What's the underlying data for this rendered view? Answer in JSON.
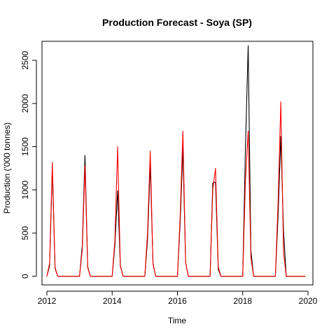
{
  "chart_data": {
    "type": "line",
    "title": "Production Forecast - Soya (SP)",
    "xlabel": "Time",
    "ylabel": "Production ('000 tonnes)",
    "xlim": [
      2011.85,
      2020.15
    ],
    "ylim": [
      -100,
      2720
    ],
    "x_ticks": [
      2012,
      2014,
      2016,
      2018,
      2020
    ],
    "x_tick_labels": [
      "2012",
      "2014",
      "2016",
      "2018",
      "2020"
    ],
    "y_ticks": [
      0,
      500,
      1000,
      1500,
      2000,
      2500
    ],
    "y_tick_labels": [
      "0",
      "500",
      "1000",
      "1500",
      "2000",
      "2500"
    ],
    "grid": false,
    "colors": {
      "actual": "#000000",
      "forecast": "#ff0000"
    },
    "series": [
      {
        "role": "actual",
        "color": "#000000",
        "points": [
          [
            2012.0,
            0
          ],
          [
            2012.083,
            120
          ],
          [
            2012.167,
            1250
          ],
          [
            2012.25,
            90
          ],
          [
            2012.333,
            0
          ],
          [
            2013.0,
            0
          ],
          [
            2013.083,
            350
          ],
          [
            2013.167,
            1400
          ],
          [
            2013.25,
            110
          ],
          [
            2013.333,
            0
          ],
          [
            2014.0,
            0
          ],
          [
            2014.083,
            360
          ],
          [
            2014.167,
            990
          ],
          [
            2014.25,
            130
          ],
          [
            2014.333,
            0
          ],
          [
            2015.0,
            0
          ],
          [
            2015.083,
            420
          ],
          [
            2015.167,
            1300
          ],
          [
            2015.25,
            150
          ],
          [
            2015.333,
            0
          ],
          [
            2016.0,
            0
          ],
          [
            2016.083,
            620
          ],
          [
            2016.167,
            1480
          ],
          [
            2016.25,
            160
          ],
          [
            2016.333,
            0
          ],
          [
            2017.0,
            0
          ],
          [
            2017.083,
            1080
          ],
          [
            2017.167,
            1090
          ],
          [
            2017.25,
            80
          ],
          [
            2017.333,
            0
          ],
          [
            2018.0,
            0
          ],
          [
            2018.083,
            1480
          ],
          [
            2018.167,
            2670
          ],
          [
            2018.25,
            300
          ],
          [
            2018.333,
            0
          ],
          [
            2019.0,
            0
          ],
          [
            2019.083,
            700
          ],
          [
            2019.167,
            1620
          ],
          [
            2019.25,
            520
          ],
          [
            2019.333,
            0
          ],
          [
            2019.917,
            0
          ]
        ]
      },
      {
        "role": "forecast",
        "color": "#ff0000",
        "points": [
          [
            2012.0,
            0
          ],
          [
            2012.083,
            150
          ],
          [
            2012.167,
            1320
          ],
          [
            2012.25,
            100
          ],
          [
            2012.333,
            0
          ],
          [
            2013.0,
            0
          ],
          [
            2013.083,
            300
          ],
          [
            2013.167,
            1280
          ],
          [
            2013.25,
            100
          ],
          [
            2013.333,
            0
          ],
          [
            2014.0,
            0
          ],
          [
            2014.083,
            420
          ],
          [
            2014.167,
            1500
          ],
          [
            2014.25,
            120
          ],
          [
            2014.333,
            0
          ],
          [
            2015.0,
            0
          ],
          [
            2015.083,
            500
          ],
          [
            2015.167,
            1450
          ],
          [
            2015.25,
            140
          ],
          [
            2015.333,
            0
          ],
          [
            2016.0,
            0
          ],
          [
            2016.083,
            700
          ],
          [
            2016.167,
            1680
          ],
          [
            2016.25,
            160
          ],
          [
            2016.333,
            0
          ],
          [
            2017.0,
            0
          ],
          [
            2017.083,
            1000
          ],
          [
            2017.167,
            1250
          ],
          [
            2017.25,
            110
          ],
          [
            2017.333,
            0
          ],
          [
            2018.0,
            0
          ],
          [
            2018.083,
            1100
          ],
          [
            2018.167,
            1680
          ],
          [
            2018.25,
            220
          ],
          [
            2018.333,
            0
          ],
          [
            2019.0,
            0
          ],
          [
            2019.083,
            850
          ],
          [
            2019.167,
            2020
          ],
          [
            2019.25,
            280
          ],
          [
            2019.333,
            0
          ],
          [
            2019.917,
            0
          ]
        ]
      }
    ]
  }
}
